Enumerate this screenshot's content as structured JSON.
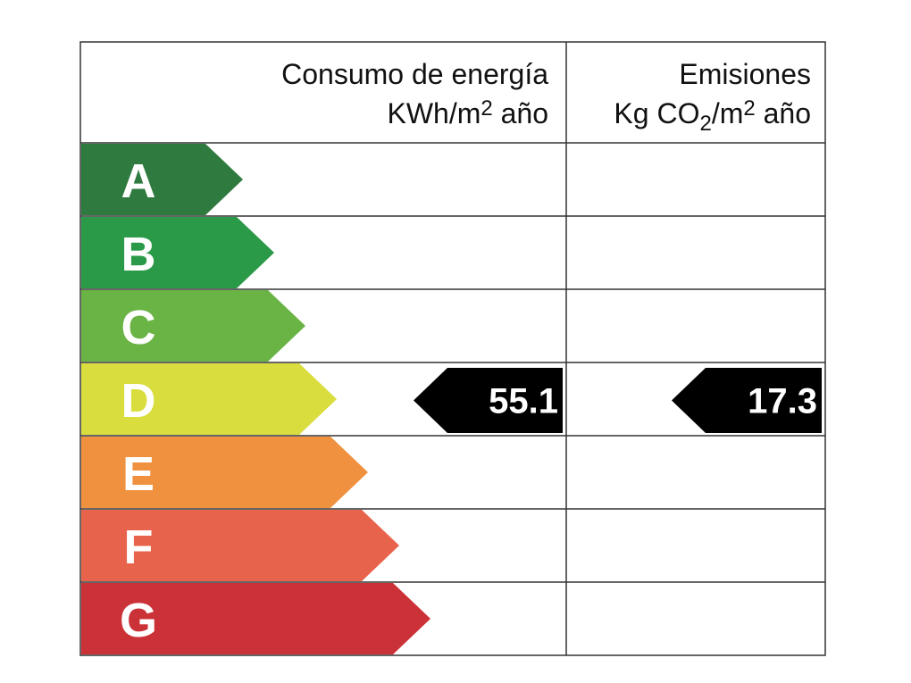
{
  "header": {
    "consumption_title": "Consumo de energía",
    "consumption_unit": [
      "KWh/m",
      "2",
      " año"
    ],
    "emissions_title": "Emisiones",
    "emissions_unit": [
      "Kg CO",
      "2",
      "/m",
      "2",
      " año"
    ]
  },
  "classes": [
    {
      "label": "A",
      "color": "#2e7a3f"
    },
    {
      "label": "B",
      "color": "#2b9a48"
    },
    {
      "label": "C",
      "color": "#6ab445"
    },
    {
      "label": "D",
      "color": "#d9dd3d"
    },
    {
      "label": "E",
      "color": "#f0913f"
    },
    {
      "label": "F",
      "color": "#e8634b"
    },
    {
      "label": "G",
      "color": "#cb3237"
    }
  ],
  "consumption_rating": {
    "class": "D",
    "value": 55.1
  },
  "emissions_rating": {
    "class": "D",
    "value": 17.3
  }
}
